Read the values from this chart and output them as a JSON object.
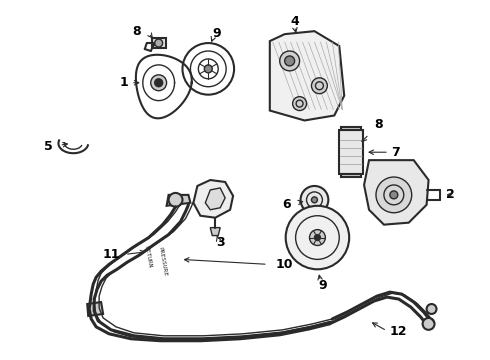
{
  "background_color": "#ffffff",
  "line_color": "#2a2a2a",
  "label_color": "#000000",
  "fig_width": 4.9,
  "fig_height": 3.6,
  "dpi": 100
}
